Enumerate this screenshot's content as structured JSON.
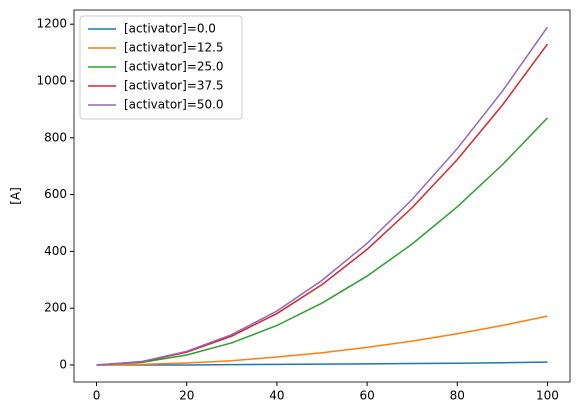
{
  "chart_data": {
    "type": "line",
    "ylabel": "[A]",
    "x": [
      0,
      10,
      20,
      30,
      40,
      50,
      60,
      70,
      80,
      90,
      100
    ],
    "series": [
      {
        "name": "[activator]=0.0",
        "color": "#1f77b4",
        "values": [
          0,
          0,
          0,
          1,
          2,
          3,
          4,
          5,
          6,
          8,
          10
        ]
      },
      {
        "name": "[activator]=12.5",
        "color": "#ff7f0e",
        "values": [
          0,
          2,
          7,
          15,
          28,
          43,
          62,
          84,
          110,
          139,
          172
        ]
      },
      {
        "name": "[activator]=25.0",
        "color": "#2ca02c",
        "values": [
          0,
          9,
          35,
          78,
          139,
          218,
          313,
          426,
          557,
          705,
          870
        ]
      },
      {
        "name": "[activator]=37.5",
        "color": "#d62728",
        "values": [
          0,
          11,
          45,
          102,
          181,
          283,
          407,
          554,
          723,
          915,
          1130
        ]
      },
      {
        "name": "[activator]=50.0",
        "color": "#9467bd",
        "values": [
          0,
          12,
          48,
          107,
          190,
          298,
          428,
          583,
          762,
          964,
          1190
        ]
      }
    ],
    "xlim": [
      -5,
      105
    ],
    "xticks": [
      0,
      20,
      40,
      60,
      80,
      100
    ],
    "ylim": [
      -60,
      1250
    ],
    "yticks": [
      0,
      200,
      400,
      600,
      800,
      1000,
      1200
    ],
    "legend": "upper left"
  }
}
